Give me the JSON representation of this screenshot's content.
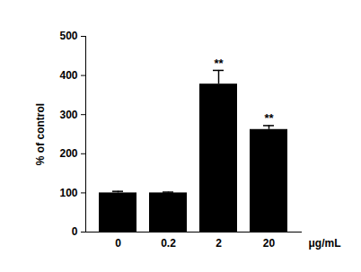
{
  "chart_data": {
    "type": "bar",
    "categories": [
      "0",
      "0.2",
      "2",
      "20"
    ],
    "values": [
      100,
      100,
      378,
      262
    ],
    "errors": [
      4,
      2,
      35,
      10
    ],
    "significance": [
      null,
      null,
      "**",
      "**"
    ],
    "color": "#000000",
    "y_label": "% of control",
    "x_label": "μg/mL",
    "ylim": [
      0,
      500
    ],
    "yticks": [
      0,
      100,
      200,
      300,
      400,
      500
    ],
    "grid": false
  }
}
